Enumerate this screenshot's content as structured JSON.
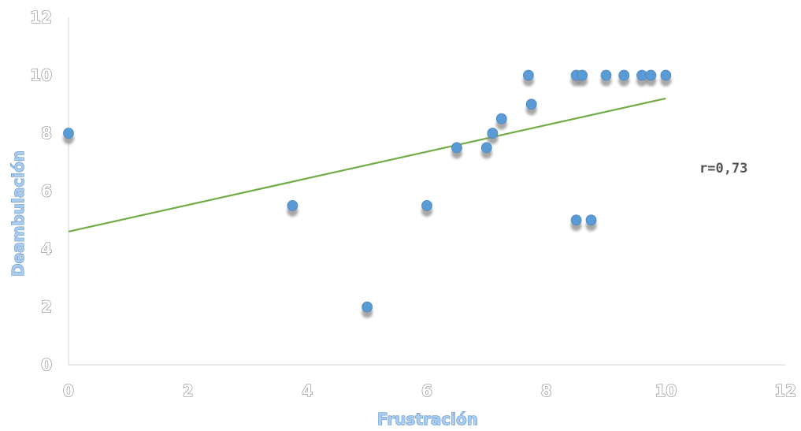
{
  "chart_data": {
    "type": "scatter",
    "title": "",
    "xlabel": "Frustración",
    "ylabel": "Deambulación",
    "xlim": [
      0,
      12
    ],
    "ylim": [
      0,
      12
    ],
    "xticks": [
      "0",
      "2",
      "4",
      "6",
      "8",
      "10",
      "12"
    ],
    "yticks": [
      "0",
      "2",
      "4",
      "6",
      "8",
      "10",
      "12"
    ],
    "grid": false,
    "legend": "none",
    "annotation": "r=0,73",
    "points": [
      {
        "x": 0,
        "y": 8
      },
      {
        "x": 3.75,
        "y": 5.5
      },
      {
        "x": 5,
        "y": 2
      },
      {
        "x": 6,
        "y": 5.5
      },
      {
        "x": 6.5,
        "y": 7.5
      },
      {
        "x": 7,
        "y": 7.5
      },
      {
        "x": 7.1,
        "y": 8
      },
      {
        "x": 7.25,
        "y": 8.5
      },
      {
        "x": 7.7,
        "y": 10
      },
      {
        "x": 7.75,
        "y": 9
      },
      {
        "x": 8.5,
        "y": 10
      },
      {
        "x": 8.6,
        "y": 10
      },
      {
        "x": 8.5,
        "y": 5
      },
      {
        "x": 8.75,
        "y": 5
      },
      {
        "x": 9,
        "y": 10
      },
      {
        "x": 9.3,
        "y": 10
      },
      {
        "x": 9.6,
        "y": 10
      },
      {
        "x": 9.75,
        "y": 10
      },
      {
        "x": 10,
        "y": 10
      }
    ],
    "trendline": {
      "x": [
        0,
        10
      ],
      "y": [
        4.6,
        9.2
      ]
    },
    "colors": {
      "point": "#5b9bd5",
      "trendline": "#70ad47",
      "axis": "#d9d9d9"
    }
  }
}
